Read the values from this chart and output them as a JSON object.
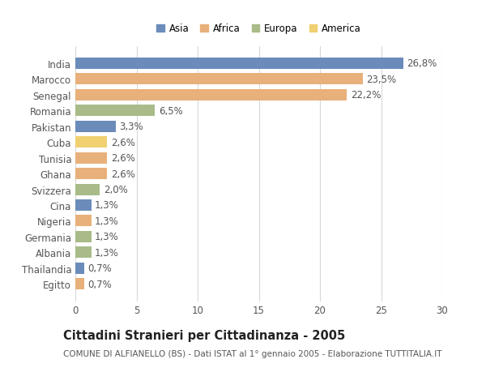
{
  "countries": [
    "India",
    "Marocco",
    "Senegal",
    "Romania",
    "Pakistan",
    "Cuba",
    "Tunisia",
    "Ghana",
    "Svizzera",
    "Cina",
    "Nigeria",
    "Germania",
    "Albania",
    "Thailandia",
    "Egitto"
  ],
  "values": [
    26.8,
    23.5,
    22.2,
    6.5,
    3.3,
    2.6,
    2.6,
    2.6,
    2.0,
    1.3,
    1.3,
    1.3,
    1.3,
    0.7,
    0.7
  ],
  "labels": [
    "26,8%",
    "23,5%",
    "22,2%",
    "6,5%",
    "3,3%",
    "2,6%",
    "2,6%",
    "2,6%",
    "2,0%",
    "1,3%",
    "1,3%",
    "1,3%",
    "1,3%",
    "0,7%",
    "0,7%"
  ],
  "continents": [
    "Asia",
    "Africa",
    "Africa",
    "Europa",
    "Asia",
    "America",
    "Africa",
    "Africa",
    "Europa",
    "Asia",
    "Africa",
    "Europa",
    "Europa",
    "Asia",
    "Africa"
  ],
  "continent_colors": {
    "Asia": "#6b8cba",
    "Africa": "#e8b07a",
    "Europa": "#a8bb88",
    "America": "#f0d070"
  },
  "legend_order": [
    "Asia",
    "Africa",
    "Europa",
    "America"
  ],
  "title": "Cittadini Stranieri per Cittadinanza - 2005",
  "subtitle": "COMUNE DI ALFIANELLO (BS) - Dati ISTAT al 1° gennaio 2005 - Elaborazione TUTTITALIA.IT",
  "xlim": [
    0,
    30
  ],
  "xticks": [
    0,
    5,
    10,
    15,
    20,
    25,
    30
  ],
  "background_color": "#ffffff",
  "grid_color": "#d8d8d8",
  "bar_height": 0.72,
  "label_fontsize": 8.5,
  "tick_fontsize": 8.5,
  "title_fontsize": 10.5,
  "subtitle_fontsize": 7.5
}
